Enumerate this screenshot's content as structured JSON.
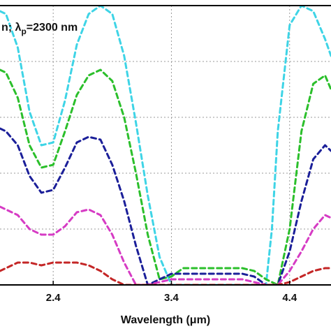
{
  "chart_data": {
    "type": "line",
    "annotation": {
      "prefix": "n; ",
      "symbol": "λ",
      "subscript": "p",
      "suffix": "=2300 nm"
    },
    "xlabel": {
      "prefix": "Wavelength (",
      "mu": "μ",
      "suffix": "m)"
    },
    "xlim": [
      1.95,
      4.75
    ],
    "ylim": [
      0,
      1.0
    ],
    "x_ticks": [
      2.4,
      3.4,
      4.4
    ],
    "x_tick_labels": [
      "2.4",
      "3.4",
      "4.4"
    ],
    "grid": true,
    "series": [
      {
        "color": "#3ed4e6",
        "x": [
          1.95,
          2.0,
          2.1,
          2.2,
          2.3,
          2.4,
          2.5,
          2.6,
          2.7,
          2.8,
          2.9,
          3.0,
          3.1,
          3.2,
          3.3,
          3.4,
          3.5,
          3.6,
          3.7,
          3.8,
          3.9,
          4.0,
          4.1,
          4.2,
          4.25,
          4.3,
          4.4,
          4.5,
          4.6,
          4.7,
          4.75
        ],
        "y": [
          0.98,
          0.97,
          0.85,
          0.62,
          0.5,
          0.51,
          0.66,
          0.86,
          0.97,
          1.0,
          0.97,
          0.82,
          0.58,
          0.32,
          0.1,
          0.0,
          0.0,
          0.0,
          0.0,
          0.0,
          0.0,
          0.0,
          0.0,
          0.0,
          0.2,
          0.55,
          0.93,
          1.0,
          0.98,
          0.88,
          0.82
        ]
      },
      {
        "color": "#2bbf2b",
        "x": [
          1.95,
          2.0,
          2.1,
          2.2,
          2.3,
          2.4,
          2.5,
          2.6,
          2.7,
          2.8,
          2.9,
          3.0,
          3.1,
          3.2,
          3.3,
          3.4,
          3.5,
          3.6,
          3.7,
          3.8,
          3.9,
          4.0,
          4.1,
          4.2,
          4.3,
          4.4,
          4.5,
          4.6,
          4.7,
          4.75
        ],
        "y": [
          0.77,
          0.76,
          0.67,
          0.5,
          0.42,
          0.43,
          0.55,
          0.68,
          0.75,
          0.77,
          0.73,
          0.6,
          0.4,
          0.18,
          0.02,
          0.03,
          0.06,
          0.06,
          0.06,
          0.06,
          0.06,
          0.06,
          0.05,
          0.02,
          0.0,
          0.2,
          0.55,
          0.72,
          0.75,
          0.7
        ]
      },
      {
        "color": "#1b1f99",
        "x": [
          1.95,
          2.0,
          2.1,
          2.2,
          2.3,
          2.4,
          2.5,
          2.6,
          2.7,
          2.8,
          2.9,
          3.0,
          3.1,
          3.2,
          3.3,
          3.4,
          3.5,
          3.6,
          3.7,
          3.8,
          3.9,
          4.0,
          4.1,
          4.2,
          4.3,
          4.4,
          4.5,
          4.6,
          4.7,
          4.75
        ],
        "y": [
          0.56,
          0.55,
          0.5,
          0.39,
          0.33,
          0.34,
          0.42,
          0.51,
          0.53,
          0.52,
          0.43,
          0.3,
          0.14,
          0.0,
          0.02,
          0.04,
          0.04,
          0.04,
          0.04,
          0.04,
          0.04,
          0.04,
          0.03,
          0.0,
          0.0,
          0.12,
          0.3,
          0.45,
          0.5,
          0.48
        ]
      },
      {
        "color": "#d63bc4",
        "x": [
          1.95,
          2.0,
          2.1,
          2.2,
          2.3,
          2.4,
          2.5,
          2.6,
          2.7,
          2.8,
          2.9,
          3.0,
          3.1,
          3.2,
          3.3,
          3.4,
          3.5,
          3.6,
          3.7,
          3.8,
          3.9,
          4.0,
          4.1,
          4.2,
          4.3,
          4.4,
          4.5,
          4.6,
          4.7,
          4.75
        ],
        "y": [
          0.28,
          0.27,
          0.25,
          0.2,
          0.18,
          0.18,
          0.21,
          0.26,
          0.27,
          0.25,
          0.18,
          0.08,
          0.0,
          0.0,
          0.01,
          0.02,
          0.02,
          0.02,
          0.02,
          0.02,
          0.02,
          0.02,
          0.01,
          0.0,
          0.0,
          0.05,
          0.12,
          0.2,
          0.25,
          0.24
        ]
      },
      {
        "color": "#c42626",
        "x": [
          1.95,
          2.0,
          2.1,
          2.2,
          2.3,
          2.4,
          2.5,
          2.6,
          2.7,
          2.8,
          2.9,
          3.0,
          3.1,
          3.2,
          3.3,
          3.4,
          3.5,
          3.6,
          3.7,
          3.8,
          3.9,
          4.0,
          4.1,
          4.2,
          4.3,
          4.4,
          4.5,
          4.6,
          4.7,
          4.75
        ],
        "y": [
          0.05,
          0.06,
          0.08,
          0.08,
          0.07,
          0.08,
          0.08,
          0.08,
          0.07,
          0.05,
          0.02,
          0.0,
          0.0,
          0.0,
          0.0,
          0.0,
          0.0,
          0.0,
          0.0,
          0.0,
          0.0,
          0.0,
          0.0,
          0.0,
          0.0,
          0.01,
          0.03,
          0.05,
          0.06,
          0.06
        ]
      }
    ]
  }
}
